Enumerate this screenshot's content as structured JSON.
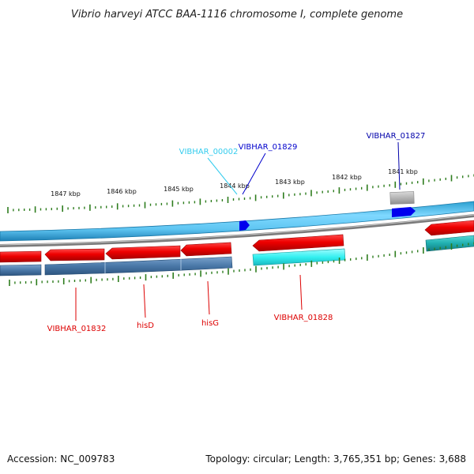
{
  "title": "Vibrio harveyi ATCC BAA-1116 chromosome I, complete genome",
  "footer": {
    "accession": "Accession: NC_009783",
    "topology": "Topology: circular; Length: 3,765,351 bp; Genes: 3,688"
  },
  "ruler": {
    "ticks": [
      "1847 kbp",
      "1846 kbp",
      "1845 kbp",
      "1844 kbp",
      "1843 kbp",
      "1842 kbp",
      "1841 kbp"
    ]
  },
  "labels": {
    "upper": [
      {
        "text": "VIBHAR_00002",
        "color": "#33ccee"
      },
      {
        "text": "VIBHAR_01829",
        "color": "#0000cc"
      },
      {
        "text": "VIBHAR_01827",
        "color": "#0000aa"
      }
    ],
    "lower": [
      {
        "text": "VIBHAR_01832",
        "color": "#dd0000"
      },
      {
        "text": "hisD",
        "color": "#dd0000"
      },
      {
        "text": "hisG",
        "color": "#dd0000"
      },
      {
        "text": "VIBHAR_01828",
        "color": "#dd0000"
      }
    ]
  },
  "colors": {
    "forward_track": "#4fc8f0",
    "marker": "#0000ee",
    "backbone": "#808080",
    "gene_red": "#ee0000",
    "gene_cyan": "#33f0f0",
    "gene_teal": "#20b0b0",
    "steel_blue": "#4a78a8",
    "tick_green": "#2e7d1e",
    "gray_block": "#b0b0b0"
  }
}
